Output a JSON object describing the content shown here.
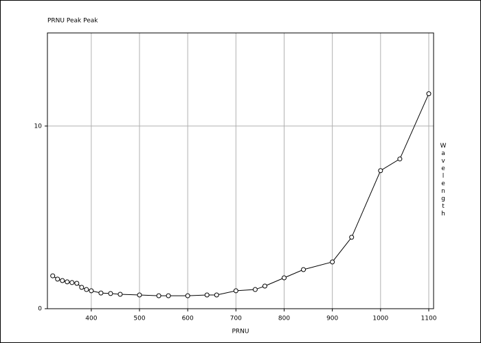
{
  "chart_data": {
    "type": "line",
    "title": "PRNU Peak Peak",
    "x_label": "PRNU",
    "y_label": "Wavelength",
    "x": [
      320,
      330,
      340,
      350,
      360,
      370,
      380,
      390,
      400,
      420,
      440,
      460,
      500,
      540,
      560,
      600,
      640,
      660,
      700,
      740,
      760,
      800,
      840,
      900,
      940,
      1000,
      1040,
      1100
    ],
    "series": [
      {
        "name": "PRNU Peak Peak",
        "color": "#000000",
        "values": [
          1.8,
          1.62,
          1.54,
          1.47,
          1.43,
          1.39,
          1.17,
          1.05,
          0.98,
          0.86,
          0.83,
          0.79,
          0.75,
          0.71,
          0.71,
          0.71,
          0.75,
          0.75,
          0.98,
          1.05,
          1.24,
          1.69,
          2.14,
          2.56,
          3.91,
          7.56,
          8.2,
          11.77
        ]
      }
    ],
    "xlim": [
      309,
      1110
    ],
    "ylim": [
      0,
      15.1
    ],
    "xticks": [
      400,
      500,
      600,
      700,
      800,
      900,
      1000,
      1100
    ],
    "yticks": [
      0,
      10
    ],
    "grid": true
  }
}
